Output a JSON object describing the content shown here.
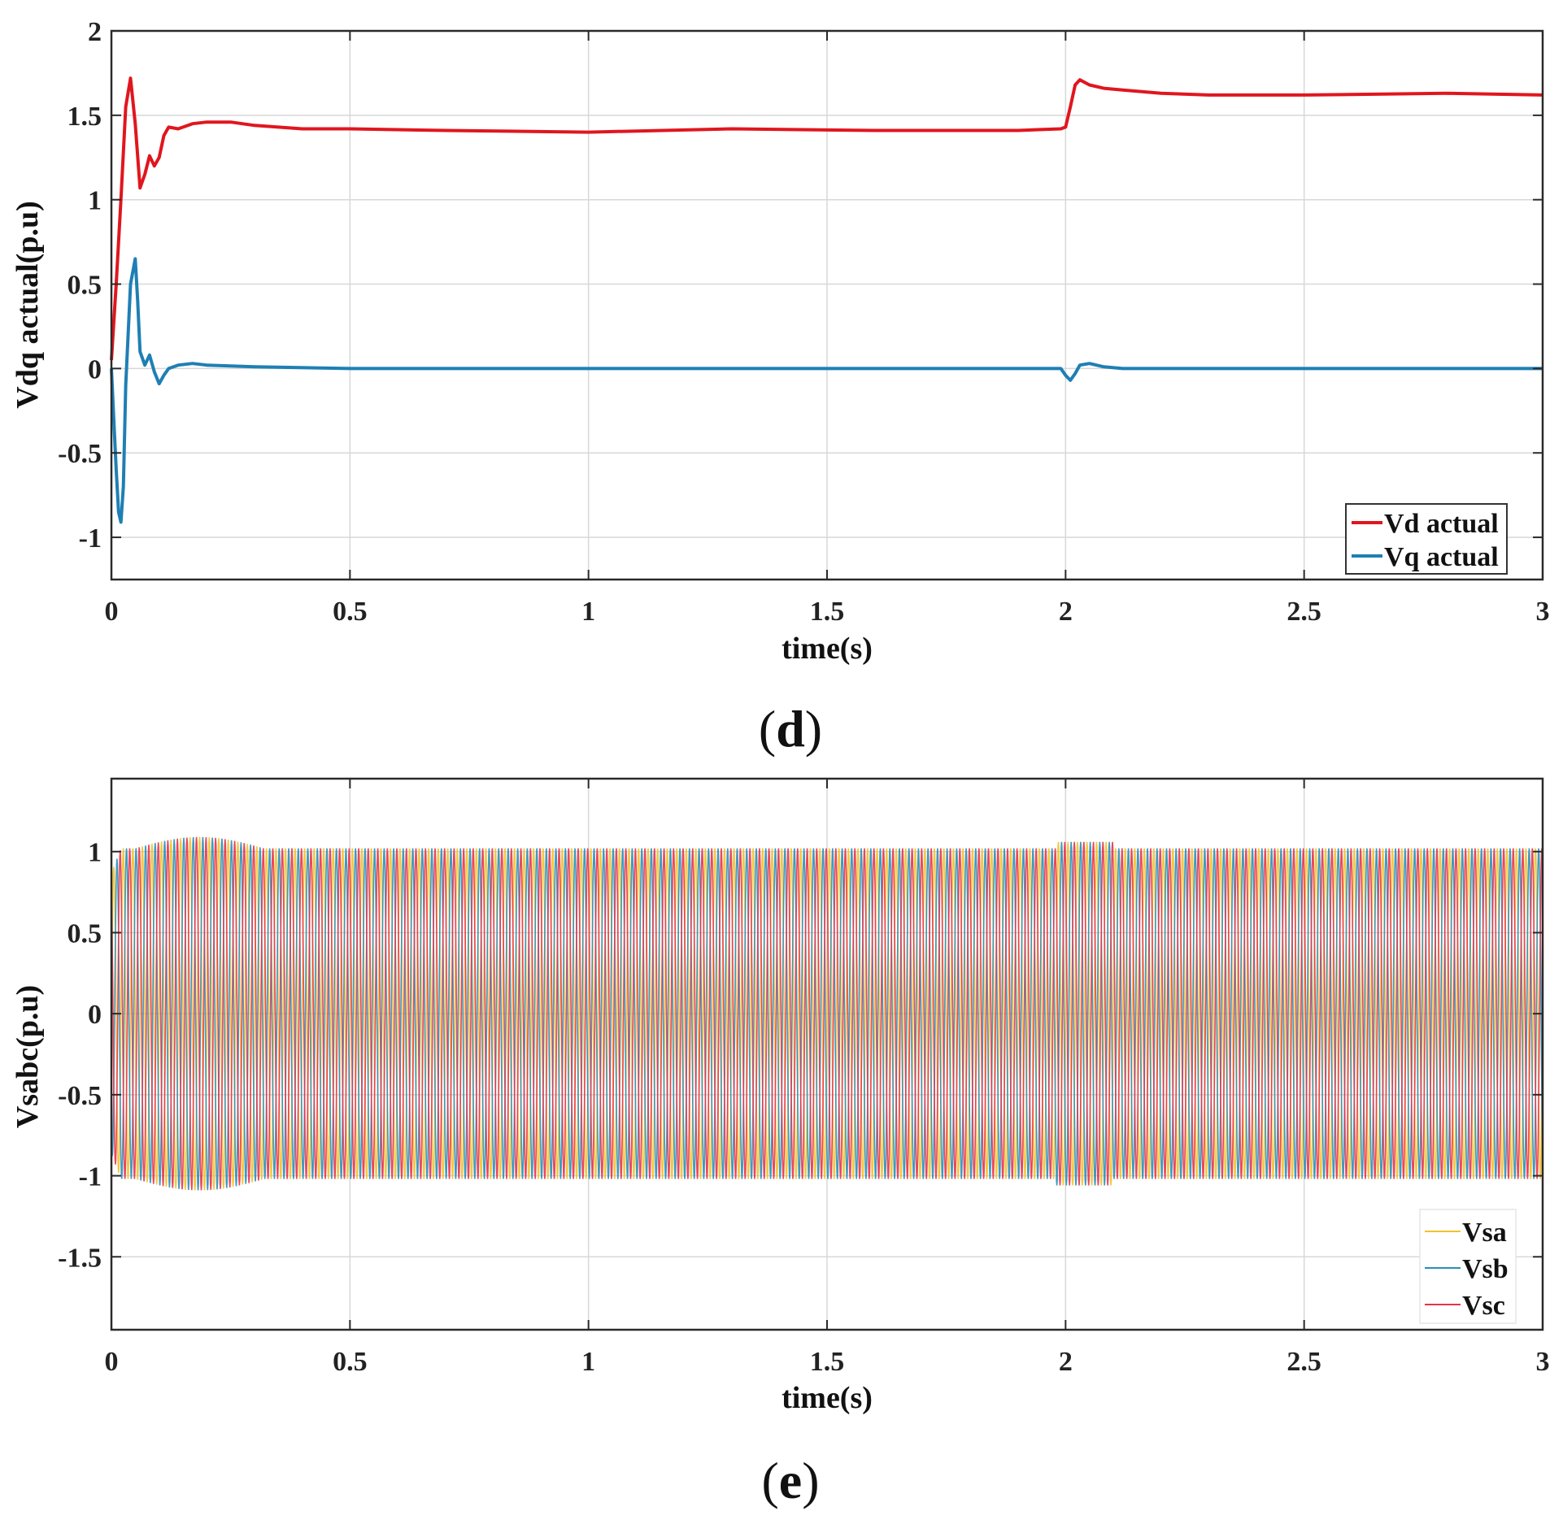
{
  "chart_data": [
    {
      "type": "line",
      "panel_label": "d",
      "xlabel": "time(s)",
      "ylabel": "Vdq actual(p.u)",
      "xlim": [
        0,
        3
      ],
      "ylim": [
        -1.25,
        2
      ],
      "xticks": [
        0,
        0.5,
        1,
        1.5,
        2,
        2.5,
        3
      ],
      "xtick_labels": [
        "0",
        "0.5",
        "1",
        "1.5",
        "2",
        "2.5",
        "3"
      ],
      "yticks": [
        -1,
        -0.5,
        0,
        0.5,
        1,
        1.5,
        2
      ],
      "ytick_labels": [
        "-1",
        "-0.5",
        "0",
        "0.5",
        "1",
        "1.5",
        "2"
      ],
      "grid": true,
      "legend_position": "bottom-right",
      "series": [
        {
          "name": "Vd actual",
          "color": "#e0161e",
          "x": [
            0,
            0.01,
            0.02,
            0.03,
            0.04,
            0.05,
            0.06,
            0.07,
            0.08,
            0.09,
            0.1,
            0.11,
            0.12,
            0.14,
            0.17,
            0.2,
            0.25,
            0.3,
            0.4,
            0.5,
            0.7,
            1.0,
            1.3,
            1.6,
            1.9,
            1.99,
            2.0,
            2.01,
            2.02,
            2.03,
            2.05,
            2.08,
            2.12,
            2.2,
            2.3,
            2.5,
            2.8,
            3.0
          ],
          "y": [
            0.05,
            0.5,
            1.0,
            1.55,
            1.72,
            1.45,
            1.07,
            1.15,
            1.26,
            1.2,
            1.25,
            1.38,
            1.43,
            1.42,
            1.45,
            1.46,
            1.46,
            1.44,
            1.42,
            1.42,
            1.41,
            1.4,
            1.42,
            1.41,
            1.41,
            1.42,
            1.43,
            1.55,
            1.68,
            1.71,
            1.68,
            1.66,
            1.65,
            1.63,
            1.62,
            1.62,
            1.63,
            1.62
          ]
        },
        {
          "name": "Vq actual",
          "color": "#1f7fb4",
          "x": [
            0,
            0.005,
            0.01,
            0.015,
            0.02,
            0.025,
            0.03,
            0.04,
            0.05,
            0.055,
            0.06,
            0.07,
            0.08,
            0.09,
            0.1,
            0.11,
            0.12,
            0.14,
            0.17,
            0.2,
            0.3,
            0.5,
            1.0,
            1.5,
            1.99,
            2.0,
            2.01,
            2.02,
            2.03,
            2.05,
            2.08,
            2.12,
            2.5,
            3.0
          ],
          "y": [
            0.0,
            -0.3,
            -0.6,
            -0.85,
            -0.91,
            -0.7,
            -0.1,
            0.5,
            0.65,
            0.4,
            0.1,
            0.02,
            0.08,
            -0.02,
            -0.09,
            -0.04,
            0.0,
            0.02,
            0.03,
            0.02,
            0.01,
            0.0,
            0.0,
            0.0,
            0.0,
            -0.04,
            -0.07,
            -0.03,
            0.02,
            0.03,
            0.01,
            0.0,
            0.0,
            0.0
          ]
        }
      ]
    },
    {
      "type": "line",
      "panel_label": "e",
      "xlabel": "time(s)",
      "ylabel": "Vsabc(p.u)",
      "xlim": [
        0,
        3
      ],
      "ylim": [
        -1.95,
        1.45
      ],
      "xticks": [
        0,
        0.5,
        1,
        1.5,
        2,
        2.5,
        3
      ],
      "xtick_labels": [
        "0",
        "0.5",
        "1",
        "1.5",
        "2",
        "2.5",
        "3"
      ],
      "yticks": [
        -1.5,
        -1,
        -0.5,
        0,
        0.5,
        1
      ],
      "ytick_labels": [
        "-1.5",
        "-1",
        "-0.5",
        "0",
        "0.5",
        "1"
      ],
      "grid": true,
      "legend_position": "bottom-right",
      "frequency_hz": 50,
      "waveform": "three-phase sinusoid, amplitude ~1.02 p.u. (~1.08 during 0.1-0.3 s transient, ~1.05 near 2.0 s)",
      "series": [
        {
          "name": "Vsa",
          "color": "#f2c12e",
          "phase_deg": 0,
          "amplitude": 1.02
        },
        {
          "name": "Vsb",
          "color": "#2a8fb8",
          "phase_deg": -120,
          "amplitude": 1.02
        },
        {
          "name": "Vsc",
          "color": "#e8334a",
          "phase_deg": 120,
          "amplitude": 1.02
        }
      ]
    }
  ],
  "captions": {
    "d": {
      "open": "(",
      "letter": "d",
      "close": ")"
    },
    "e": {
      "open": "(",
      "letter": "e",
      "close": ")"
    }
  }
}
